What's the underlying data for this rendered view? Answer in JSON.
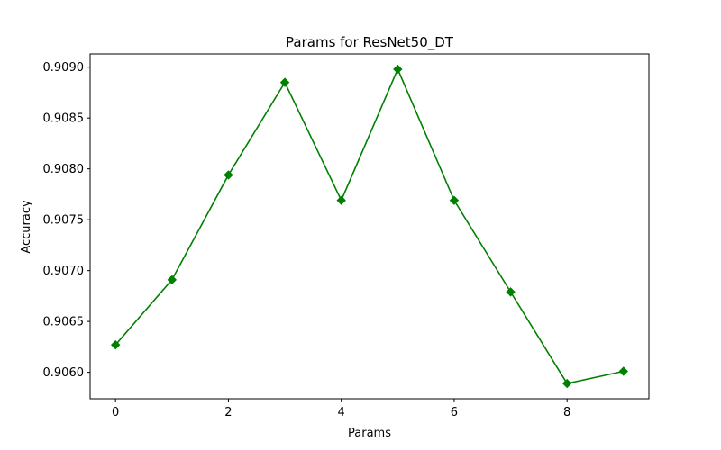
{
  "chart_data": {
    "type": "line",
    "title": "Params for ResNet50_DT",
    "xlabel": "Params",
    "ylabel": "Accuracy",
    "x": [
      0,
      1,
      2,
      3,
      4,
      5,
      6,
      7,
      8,
      9
    ],
    "series": [
      {
        "values": [
          0.90627,
          0.90691,
          0.90794,
          0.90885,
          0.90769,
          0.90898,
          0.90769,
          0.90679,
          0.90589,
          0.90601
        ],
        "color": "#008000",
        "marker": "diamond"
      }
    ],
    "xticks": [
      0,
      2,
      4,
      6,
      8
    ],
    "xtick_labels": [
      "0",
      "2",
      "4",
      "6",
      "8"
    ],
    "yticks": [
      0.906,
      0.9065,
      0.907,
      0.9075,
      0.908,
      0.9085,
      0.909
    ],
    "ytick_labels": [
      "0.9060",
      "0.9065",
      "0.9070",
      "0.9075",
      "0.9080",
      "0.9085",
      "0.9090"
    ],
    "xlim": [
      -0.45,
      9.45
    ],
    "ylim": [
      0.90574,
      0.90913
    ],
    "grid": false,
    "legend": "none"
  }
}
